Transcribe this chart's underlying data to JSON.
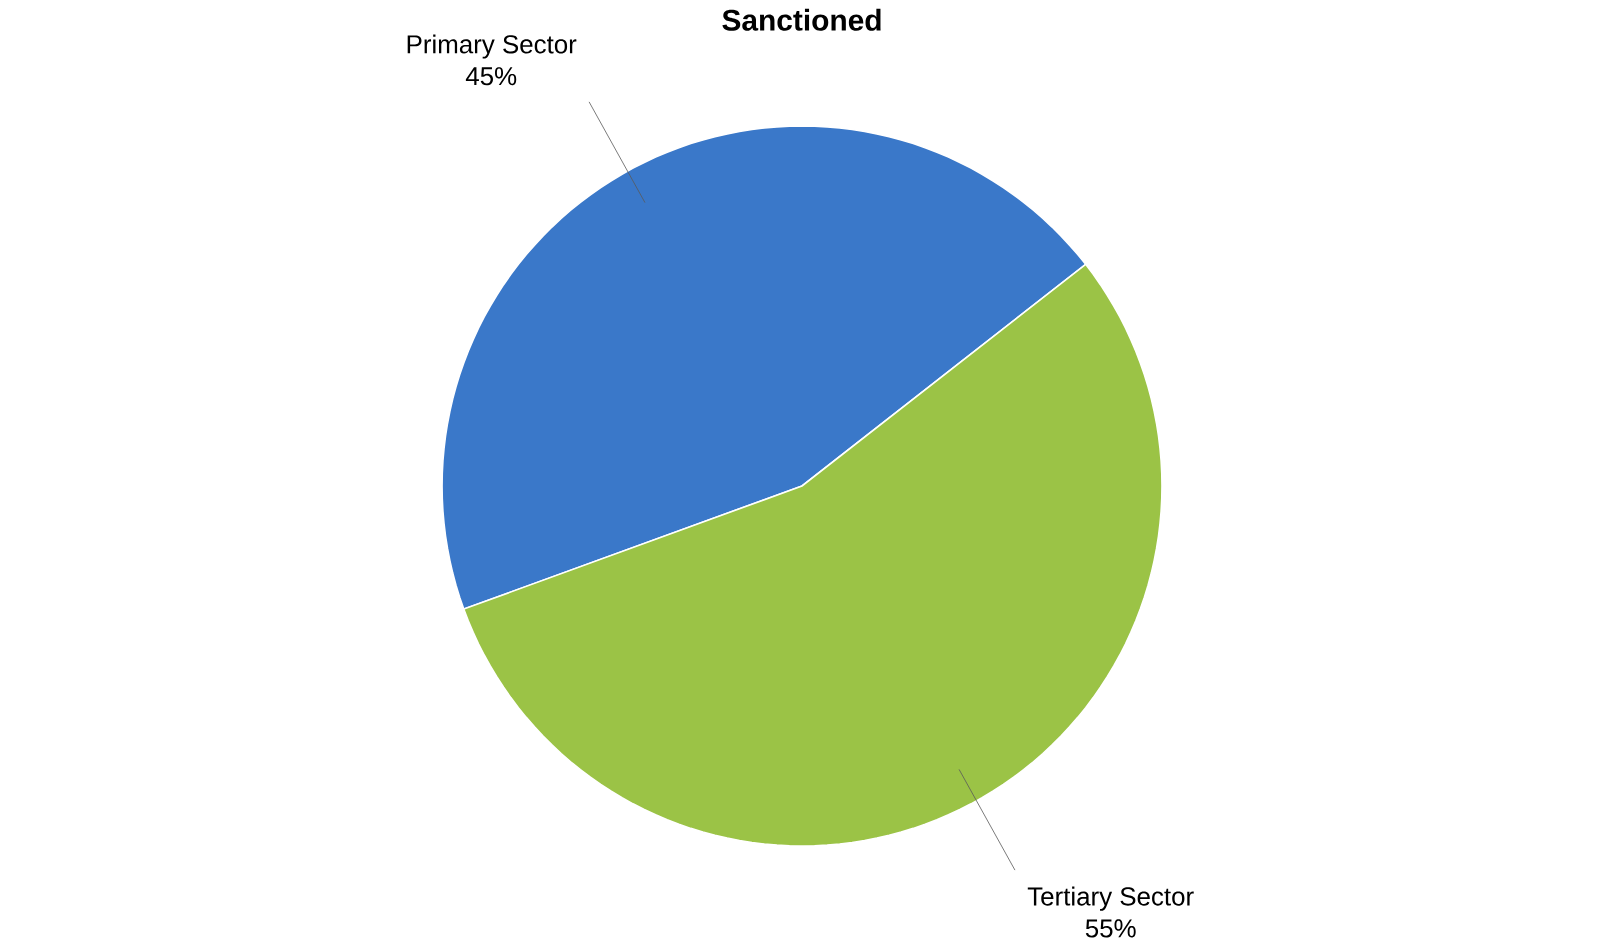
{
  "chart_data": {
    "type": "pie",
    "title": "Sanctioned",
    "categories": [
      "Primary Sector",
      "Tertiary Sector"
    ],
    "values": [
      45,
      55
    ],
    "colors": [
      "#3a78c9",
      "#9bc346"
    ],
    "value_labels": [
      "45%",
      "55%"
    ]
  }
}
